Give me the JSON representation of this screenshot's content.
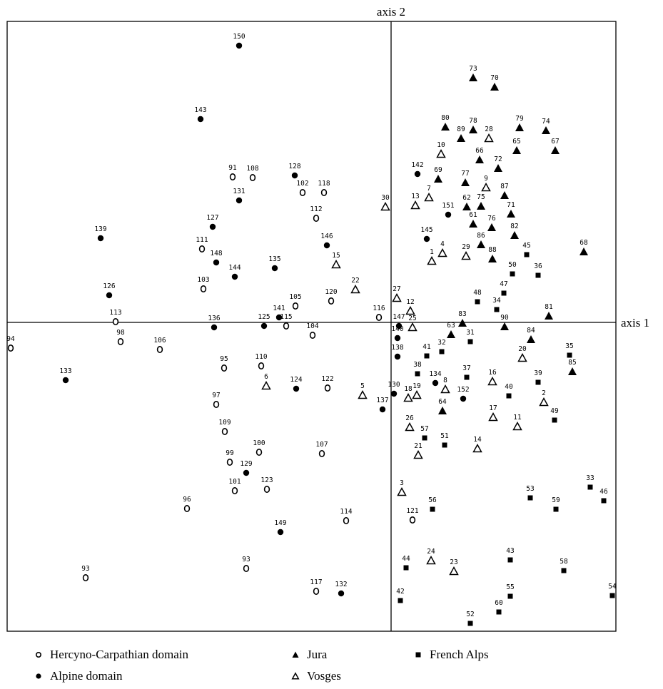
{
  "chart_data": {
    "type": "scatter",
    "xlabel": "axis 1",
    "ylabel": "axis 2",
    "xlim": [
      -530,
      330
    ],
    "ylim": [
      -430,
      425
    ],
    "grid": false,
    "legend_position": "bottom",
    "series": [
      {
        "name": "Hercyno-Carpathian domain",
        "marker": "open-circle",
        "points": [
          {
            "label": "91",
            "x": -222,
            "y": 204
          },
          {
            "label": "108",
            "x": -194,
            "y": 203
          },
          {
            "label": "102",
            "x": -124,
            "y": 182
          },
          {
            "label": "118",
            "x": -94,
            "y": 182
          },
          {
            "label": "112",
            "x": -105,
            "y": 146
          },
          {
            "label": "111",
            "x": -265,
            "y": 103
          },
          {
            "label": "103",
            "x": -263,
            "y": 47
          },
          {
            "label": "105",
            "x": -134,
            "y": 23
          },
          {
            "label": "120",
            "x": -84,
            "y": 30
          },
          {
            "label": "116",
            "x": -17,
            "y": 7
          },
          {
            "label": "115",
            "x": -147,
            "y": -5
          },
          {
            "label": "113",
            "x": -386,
            "y": 1
          },
          {
            "label": "98",
            "x": -379,
            "y": -27
          },
          {
            "label": "106",
            "x": -324,
            "y": -38
          },
          {
            "label": "94",
            "x": -534,
            "y": -36
          },
          {
            "label": "104",
            "x": -110,
            "y": -18
          },
          {
            "label": "95",
            "x": -234,
            "y": -64
          },
          {
            "label": "110",
            "x": -182,
            "y": -61
          },
          {
            "label": "122",
            "x": -89,
            "y": -92
          },
          {
            "label": "97",
            "x": -245,
            "y": -115
          },
          {
            "label": "109",
            "x": -233,
            "y": -153
          },
          {
            "label": "100",
            "x": -185,
            "y": -182
          },
          {
            "label": "107",
            "x": -97,
            "y": -184
          },
          {
            "label": "99",
            "x": -226,
            "y": -196
          },
          {
            "label": "101",
            "x": -219,
            "y": -236
          },
          {
            "label": "123",
            "x": -174,
            "y": -234
          },
          {
            "label": "96",
            "x": -286,
            "y": -261
          },
          {
            "label": "114",
            "x": -63,
            "y": -278
          },
          {
            "label": "121",
            "x": 30,
            "y": -277
          },
          {
            "label": "93",
            "x": -203,
            "y": -345
          },
          {
            "label": "93",
            "x": -428,
            "y": -358
          },
          {
            "label": "117",
            "x": -105,
            "y": -377
          }
        ]
      },
      {
        "name": "Alpine domain",
        "marker": "filled-circle",
        "points": [
          {
            "label": "150",
            "x": -213,
            "y": 388
          },
          {
            "label": "143",
            "x": -267,
            "y": 285
          },
          {
            "label": "128",
            "x": -135,
            "y": 206
          },
          {
            "label": "131",
            "x": -213,
            "y": 171
          },
          {
            "label": "142",
            "x": 37,
            "y": 208
          },
          {
            "label": "151",
            "x": 80,
            "y": 151
          },
          {
            "label": "127",
            "x": -250,
            "y": 134
          },
          {
            "label": "139",
            "x": -407,
            "y": 118
          },
          {
            "label": "145",
            "x": 50,
            "y": 117
          },
          {
            "label": "146",
            "x": -90,
            "y": 108
          },
          {
            "label": "148",
            "x": -245,
            "y": 84
          },
          {
            "label": "135",
            "x": -163,
            "y": 76
          },
          {
            "label": "144",
            "x": -219,
            "y": 64
          },
          {
            "label": "126",
            "x": -395,
            "y": 38
          },
          {
            "label": "141",
            "x": -157,
            "y": 7
          },
          {
            "label": "136",
            "x": -248,
            "y": -7
          },
          {
            "label": "147",
            "x": 11,
            "y": -5
          },
          {
            "label": "125",
            "x": -178,
            "y": -5
          },
          {
            "label": "140",
            "x": 9,
            "y": -22
          },
          {
            "label": "138",
            "x": 9,
            "y": -48
          },
          {
            "label": "133",
            "x": -456,
            "y": -81
          },
          {
            "label": "124",
            "x": -133,
            "y": -93
          },
          {
            "label": "134",
            "x": 62,
            "y": -85
          },
          {
            "label": "130",
            "x": 4,
            "y": -100
          },
          {
            "label": "152",
            "x": 101,
            "y": -107
          },
          {
            "label": "137",
            "x": -12,
            "y": -122
          },
          {
            "label": "129",
            "x": -203,
            "y": -211
          },
          {
            "label": "149",
            "x": -155,
            "y": -294
          },
          {
            "label": "132",
            "x": -70,
            "y": -380
          }
        ]
      },
      {
        "name": "Jura",
        "marker": "filled-triangle",
        "points": [
          {
            "label": "73",
            "x": 115,
            "y": 343
          },
          {
            "label": "70",
            "x": 145,
            "y": 330
          },
          {
            "label": "80",
            "x": 76,
            "y": 274
          },
          {
            "label": "78",
            "x": 115,
            "y": 270
          },
          {
            "label": "89",
            "x": 98,
            "y": 258
          },
          {
            "label": "79",
            "x": 180,
            "y": 273
          },
          {
            "label": "74",
            "x": 217,
            "y": 269
          },
          {
            "label": "65",
            "x": 176,
            "y": 241
          },
          {
            "label": "67",
            "x": 230,
            "y": 241
          },
          {
            "label": "66",
            "x": 124,
            "y": 228
          },
          {
            "label": "72",
            "x": 150,
            "y": 216
          },
          {
            "label": "69",
            "x": 66,
            "y": 201
          },
          {
            "label": "77",
            "x": 104,
            "y": 196
          },
          {
            "label": "87",
            "x": 159,
            "y": 178
          },
          {
            "label": "62",
            "x": 106,
            "y": 162
          },
          {
            "label": "75",
            "x": 126,
            "y": 163
          },
          {
            "label": "71",
            "x": 168,
            "y": 152
          },
          {
            "label": "61",
            "x": 115,
            "y": 138
          },
          {
            "label": "76",
            "x": 141,
            "y": 133
          },
          {
            "label": "82",
            "x": 173,
            "y": 122
          },
          {
            "label": "86",
            "x": 126,
            "y": 109
          },
          {
            "label": "68",
            "x": 270,
            "y": 99
          },
          {
            "label": "88",
            "x": 142,
            "y": 89
          },
          {
            "label": "81",
            "x": 221,
            "y": 9
          },
          {
            "label": "83",
            "x": 100,
            "y": -1
          },
          {
            "label": "90",
            "x": 159,
            "y": -6
          },
          {
            "label": "63",
            "x": 84,
            "y": -17
          },
          {
            "label": "84",
            "x": 196,
            "y": -24
          },
          {
            "label": "85",
            "x": 254,
            "y": -69
          },
          {
            "label": "64",
            "x": 72,
            "y": -124
          }
        ]
      },
      {
        "name": "Vosges",
        "marker": "open-triangle",
        "points": [
          {
            "label": "28",
            "x": 137,
            "y": 258
          },
          {
            "label": "10",
            "x": 70,
            "y": 236
          },
          {
            "label": "9",
            "x": 133,
            "y": 189
          },
          {
            "label": "7",
            "x": 53,
            "y": 175
          },
          {
            "label": "13",
            "x": 34,
            "y": 164
          },
          {
            "label": "30",
            "x": -8,
            "y": 162
          },
          {
            "label": "4",
            "x": 72,
            "y": 97
          },
          {
            "label": "29",
            "x": 105,
            "y": 93
          },
          {
            "label": "1",
            "x": 57,
            "y": 86
          },
          {
            "label": "15",
            "x": -77,
            "y": 81
          },
          {
            "label": "22",
            "x": -50,
            "y": 46
          },
          {
            "label": "27",
            "x": 8,
            "y": 34
          },
          {
            "label": "12",
            "x": 27,
            "y": 16
          },
          {
            "label": "25",
            "x": 30,
            "y": -7
          },
          {
            "label": "20",
            "x": 184,
            "y": -50
          },
          {
            "label": "6",
            "x": -175,
            "y": -89
          },
          {
            "label": "16",
            "x": 142,
            "y": -83
          },
          {
            "label": "8",
            "x": 76,
            "y": -94
          },
          {
            "label": "19",
            "x": 36,
            "y": -102
          },
          {
            "label": "18",
            "x": 24,
            "y": -106
          },
          {
            "label": "5",
            "x": -40,
            "y": -102
          },
          {
            "label": "2",
            "x": 214,
            "y": -112
          },
          {
            "label": "17",
            "x": 143,
            "y": -133
          },
          {
            "label": "11",
            "x": 177,
            "y": -146
          },
          {
            "label": "26",
            "x": 26,
            "y": -147
          },
          {
            "label": "21",
            "x": 38,
            "y": -186
          },
          {
            "label": "14",
            "x": 121,
            "y": -177
          },
          {
            "label": "3",
            "x": 15,
            "y": -238
          },
          {
            "label": "24",
            "x": 56,
            "y": -334
          },
          {
            "label": "23",
            "x": 88,
            "y": -349
          }
        ]
      },
      {
        "name": "French Alps",
        "marker": "filled-square",
        "points": [
          {
            "label": "45",
            "x": 190,
            "y": 95
          },
          {
            "label": "50",
            "x": 170,
            "y": 68
          },
          {
            "label": "36",
            "x": 206,
            "y": 66
          },
          {
            "label": "47",
            "x": 158,
            "y": 41
          },
          {
            "label": "48",
            "x": 121,
            "y": 29
          },
          {
            "label": "34",
            "x": 148,
            "y": 18
          },
          {
            "label": "31",
            "x": 111,
            "y": -27
          },
          {
            "label": "32",
            "x": 71,
            "y": -41
          },
          {
            "label": "41",
            "x": 50,
            "y": -47
          },
          {
            "label": "35",
            "x": 250,
            "y": -46
          },
          {
            "label": "38",
            "x": 37,
            "y": -72
          },
          {
            "label": "37",
            "x": 106,
            "y": -77
          },
          {
            "label": "39",
            "x": 206,
            "y": -84
          },
          {
            "label": "40",
            "x": 165,
            "y": -103
          },
          {
            "label": "49",
            "x": 229,
            "y": -137
          },
          {
            "label": "57",
            "x": 47,
            "y": -162
          },
          {
            "label": "51",
            "x": 75,
            "y": -172
          },
          {
            "label": "33",
            "x": 279,
            "y": -231
          },
          {
            "label": "53",
            "x": 195,
            "y": -246
          },
          {
            "label": "46",
            "x": 298,
            "y": -250
          },
          {
            "label": "59",
            "x": 231,
            "y": -262
          },
          {
            "label": "56",
            "x": 58,
            "y": -262
          },
          {
            "label": "43",
            "x": 167,
            "y": -333
          },
          {
            "label": "44",
            "x": 21,
            "y": -344
          },
          {
            "label": "58",
            "x": 242,
            "y": -348
          },
          {
            "label": "55",
            "x": 167,
            "y": -384
          },
          {
            "label": "54",
            "x": 310,
            "y": -383
          },
          {
            "label": "42",
            "x": 13,
            "y": -390
          },
          {
            "label": "60",
            "x": 151,
            "y": -406
          },
          {
            "label": "52",
            "x": 111,
            "y": -422
          }
        ]
      }
    ]
  }
}
